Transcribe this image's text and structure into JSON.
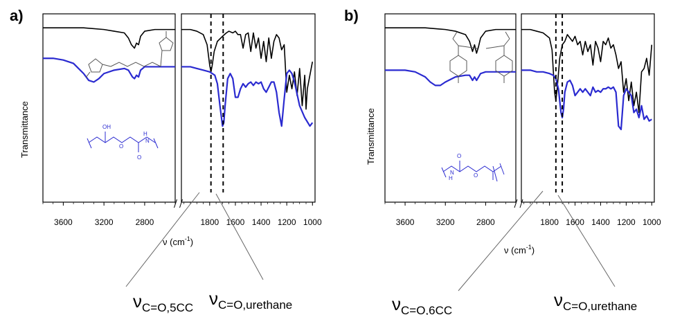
{
  "chart_data": [
    {
      "type": "line",
      "panel_label": "a)",
      "ylabel": "Transmittance",
      "xlabel_base": "ν (cm",
      "xlabel_sup": "-1",
      "xlabel_end": ")",
      "x_ticks": [
        "3600",
        "3200",
        "2800",
        "1800",
        "1600",
        "1400",
        "1200",
        "1000"
      ],
      "x_segments": [
        [
          3800,
          2500
        ],
        [
          2020,
          980
        ]
      ],
      "reference_lines": [
        1790,
        1695
      ],
      "annotations": [
        {
          "symbol": "ν",
          "subscript": "C=O,5CC"
        },
        {
          "symbol": "ν",
          "subscript": "C=O,urethane"
        }
      ],
      "series": [
        {
          "color": "#000000",
          "x": [
            3800,
            3600,
            3400,
            3200,
            3100,
            3000,
            2960,
            2930,
            2900,
            2880,
            2860,
            2840,
            2800,
            2700,
            2600,
            2500
          ],
          "y": [
            98,
            98,
            98,
            97,
            96,
            95,
            92,
            88,
            86,
            89,
            88,
            93,
            96,
            97,
            97,
            97
          ]
        },
        {
          "color": "#000000",
          "x": [
            2020,
            1950,
            1900,
            1850,
            1820,
            1800,
            1790,
            1780,
            1765,
            1740,
            1700,
            1670,
            1650,
            1620,
            1600,
            1580,
            1560,
            1540,
            1520,
            1500,
            1480,
            1460,
            1440,
            1420,
            1400,
            1380,
            1360,
            1340,
            1320,
            1300,
            1280,
            1260,
            1240,
            1220,
            1200,
            1180,
            1160,
            1140,
            1120,
            1100,
            1080,
            1060,
            1050,
            1040,
            1020,
            1000
          ],
          "y": [
            97,
            97,
            96,
            94,
            88,
            76,
            72,
            76,
            84,
            90,
            93,
            95,
            96,
            95,
            96,
            94,
            94,
            86,
            94,
            95,
            84,
            95,
            86,
            92,
            80,
            90,
            78,
            92,
            80,
            90,
            94,
            92,
            85,
            88,
            60,
            70,
            62,
            72,
            58,
            74,
            52,
            70,
            50,
            62,
            70,
            78
          ]
        },
        {
          "color": "#2a2ad0",
          "x": [
            3800,
            3700,
            3600,
            3500,
            3400,
            3350,
            3300,
            3250,
            3200,
            3100,
            3000,
            2960,
            2920,
            2900,
            2880,
            2860,
            2840,
            2800,
            2700,
            2600,
            2500
          ],
          "y": [
            80,
            80,
            79,
            77,
            71,
            67,
            66,
            68,
            71,
            73,
            74,
            73,
            69,
            68,
            70,
            69,
            73,
            75,
            75,
            75,
            75
          ],
          "width": 2.2
        },
        {
          "color": "#2a2ad0",
          "x": [
            2020,
            1950,
            1900,
            1850,
            1800,
            1760,
            1740,
            1720,
            1700,
            1690,
            1680,
            1660,
            1640,
            1620,
            1600,
            1580,
            1560,
            1540,
            1520,
            1500,
            1480,
            1460,
            1440,
            1420,
            1400,
            1380,
            1360,
            1340,
            1320,
            1300,
            1280,
            1260,
            1240,
            1220,
            1200,
            1180,
            1160,
            1140,
            1100,
            1060,
            1020,
            1000
          ],
          "y": [
            75,
            75,
            74,
            73,
            72,
            70,
            65,
            52,
            40,
            42,
            52,
            68,
            71,
            68,
            57,
            57,
            62,
            65,
            63,
            65,
            66,
            64,
            66,
            65,
            66,
            62,
            60,
            63,
            66,
            66,
            60,
            48,
            40,
            56,
            71,
            73,
            71,
            66,
            52,
            45,
            40,
            42
          ],
          "width": 2.2
        }
      ]
    },
    {
      "type": "line",
      "panel_label": "b)",
      "ylabel": "Transmittance",
      "xlabel_base": "ν (cm",
      "xlabel_sup": "-1",
      "xlabel_end": ")",
      "x_ticks": [
        "3600",
        "3200",
        "2800",
        "1800",
        "1600",
        "1400",
        "1200",
        "1000"
      ],
      "x_segments": [
        [
          3800,
          2500
        ],
        [
          2020,
          980
        ]
      ],
      "reference_lines": [
        1750,
        1700
      ],
      "annotations": [
        {
          "symbol": "ν",
          "subscript": "C=O,6CC"
        },
        {
          "symbol": "ν",
          "subscript": "C=O,urethane"
        }
      ],
      "series": [
        {
          "color": "#000000",
          "x": [
            3800,
            3600,
            3400,
            3200,
            3100,
            3000,
            2960,
            2930,
            2910,
            2890,
            2870,
            2850,
            2800,
            2700,
            2600,
            2500
          ],
          "y": [
            98,
            98,
            98,
            97,
            96,
            94,
            90,
            84,
            88,
            83,
            87,
            92,
            96,
            97,
            97,
            97
          ]
        },
        {
          "color": "#000000",
          "x": [
            2020,
            1950,
            1900,
            1850,
            1800,
            1780,
            1760,
            1750,
            1740,
            1720,
            1700,
            1680,
            1660,
            1640,
            1620,
            1600,
            1580,
            1560,
            1540,
            1520,
            1500,
            1480,
            1460,
            1440,
            1420,
            1400,
            1380,
            1360,
            1340,
            1320,
            1300,
            1280,
            1260,
            1240,
            1220,
            1200,
            1180,
            1160,
            1140,
            1120,
            1100,
            1080,
            1060,
            1040,
            1020,
            1000
          ],
          "y": [
            97,
            97,
            96,
            95,
            92,
            85,
            60,
            55,
            62,
            80,
            88,
            90,
            94,
            92,
            90,
            93,
            88,
            90,
            82,
            90,
            84,
            88,
            76,
            90,
            86,
            78,
            90,
            88,
            92,
            86,
            88,
            82,
            74,
            78,
            60,
            68,
            55,
            66,
            52,
            60,
            48,
            72,
            74,
            80,
            70,
            88
          ]
        },
        {
          "color": "#2a2ad0",
          "x": [
            3800,
            3700,
            3600,
            3500,
            3400,
            3350,
            3300,
            3250,
            3200,
            3100,
            3000,
            2960,
            2930,
            2910,
            2890,
            2870,
            2850,
            2800,
            2700,
            2600,
            2500
          ],
          "y": [
            73,
            73,
            73,
            72,
            69,
            66,
            64,
            64,
            66,
            69,
            70,
            70,
            67,
            69,
            67,
            69,
            71,
            72,
            72,
            72,
            72
          ],
          "width": 2.2
        },
        {
          "color": "#2a2ad0",
          "x": [
            2020,
            1950,
            1900,
            1850,
            1800,
            1770,
            1750,
            1730,
            1720,
            1710,
            1700,
            1690,
            1680,
            1660,
            1640,
            1620,
            1600,
            1580,
            1560,
            1540,
            1520,
            1500,
            1480,
            1460,
            1440,
            1420,
            1400,
            1380,
            1360,
            1340,
            1320,
            1300,
            1280,
            1260,
            1240,
            1220,
            1200,
            1180,
            1160,
            1140,
            1120,
            1100,
            1080,
            1060,
            1040,
            1020,
            1000
          ],
          "y": [
            73,
            73,
            72,
            72,
            71,
            70,
            68,
            62,
            55,
            48,
            45,
            50,
            60,
            66,
            67,
            64,
            58,
            60,
            62,
            60,
            62,
            60,
            58,
            63,
            60,
            61,
            60,
            62,
            62,
            63,
            62,
            63,
            60,
            40,
            38,
            58,
            62,
            60,
            58,
            48,
            50,
            45,
            52,
            44,
            46,
            43,
            44
          ],
          "width": 2.2
        }
      ]
    }
  ]
}
